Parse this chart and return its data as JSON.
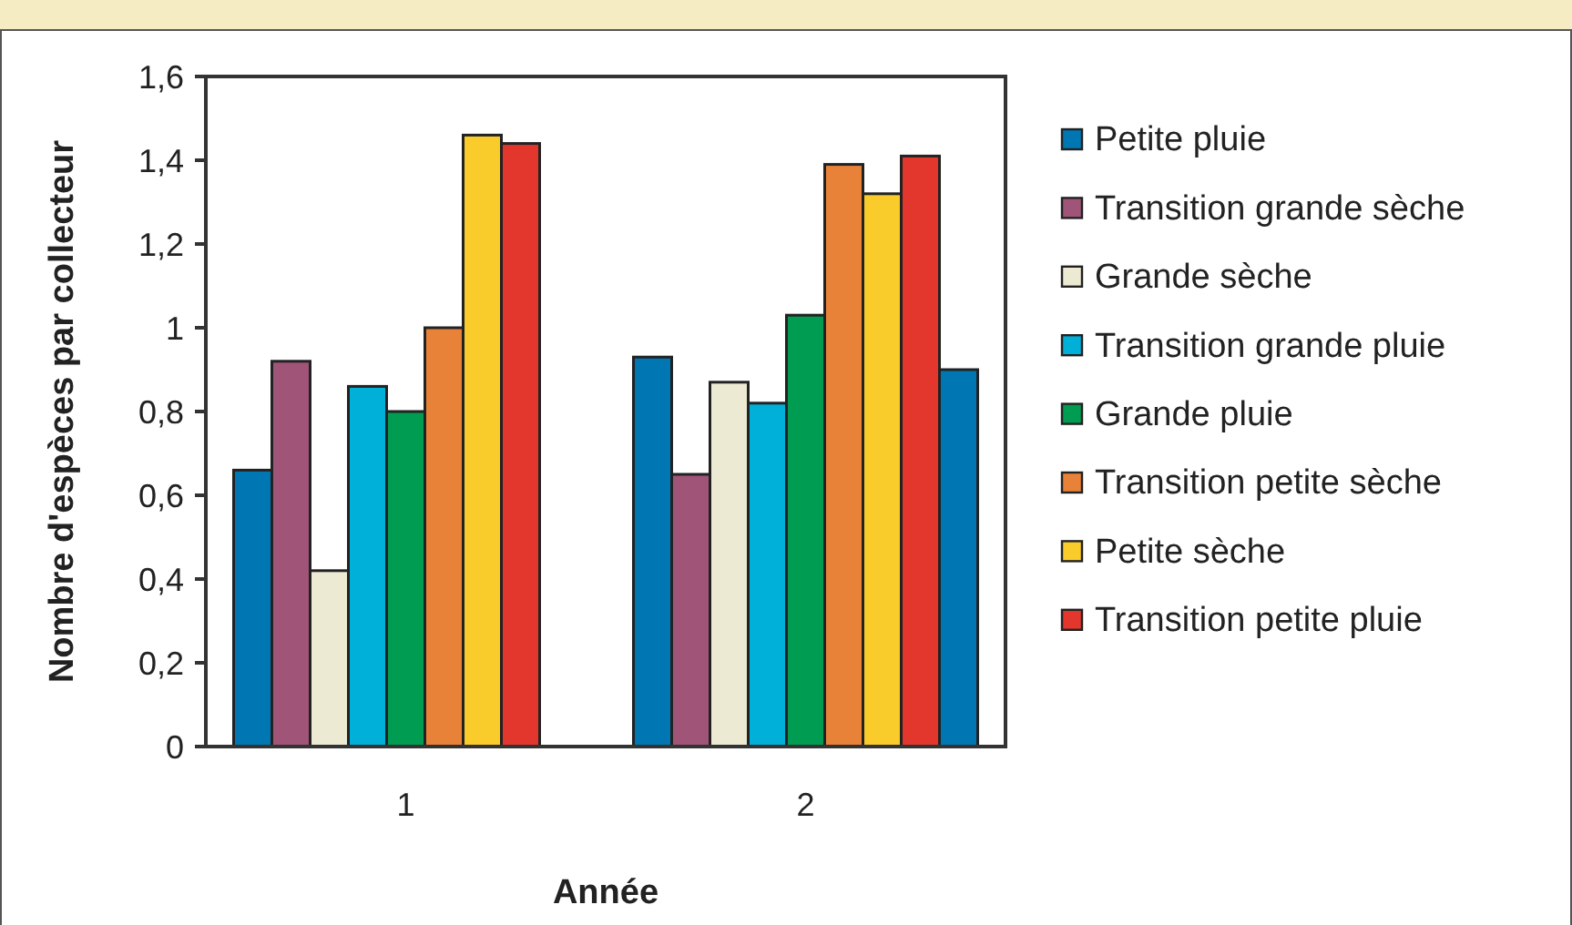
{
  "chart_data": {
    "type": "bar",
    "xlabel": "Année",
    "ylabel": "Nombre d'espèces par collecteur",
    "categories": [
      "1",
      "2"
    ],
    "ylim": [
      0,
      1.6
    ],
    "yticks": [
      0,
      {
        "value": 0.2,
        "label": "0,2"
      },
      {
        "value": 0.4,
        "label": "0,4"
      },
      {
        "value": 0.6,
        "label": "0,6"
      },
      {
        "value": 0.8,
        "label": "0,8"
      },
      1,
      {
        "value": 1.2,
        "label": "1,2"
      },
      {
        "value": 1.4,
        "label": "1,4"
      },
      {
        "value": 1.6,
        "label": "1,6"
      }
    ],
    "grid": false,
    "legend": "right",
    "series": [
      {
        "name": "Petite pluie",
        "color": "#0077b3",
        "values": [
          0.66,
          0.93
        ]
      },
      {
        "name": "Transition grande sèche",
        "color": "#a05578",
        "values": [
          0.92,
          0.65
        ]
      },
      {
        "name": "Grande sèche",
        "color": "#edead3",
        "values": [
          0.42,
          0.87
        ]
      },
      {
        "name": "Transition grande pluie",
        "color": "#00b0d8",
        "values": [
          0.86,
          0.82
        ]
      },
      {
        "name": "Grande pluie",
        "color": "#009c52",
        "values": [
          0.8,
          1.03
        ]
      },
      {
        "name": "Transition petite sèche",
        "color": "#e88239",
        "values": [
          1.0,
          1.39
        ]
      },
      {
        "name": "Petite sèche",
        "color": "#f9cc2c",
        "values": [
          1.46,
          1.32
        ]
      },
      {
        "name": "Transition petite pluie",
        "color": "#e3372e",
        "values": [
          1.44,
          1.41
        ]
      },
      {
        "color": "#0077b3",
        "values": [
          null,
          0.9
        ]
      }
    ]
  }
}
